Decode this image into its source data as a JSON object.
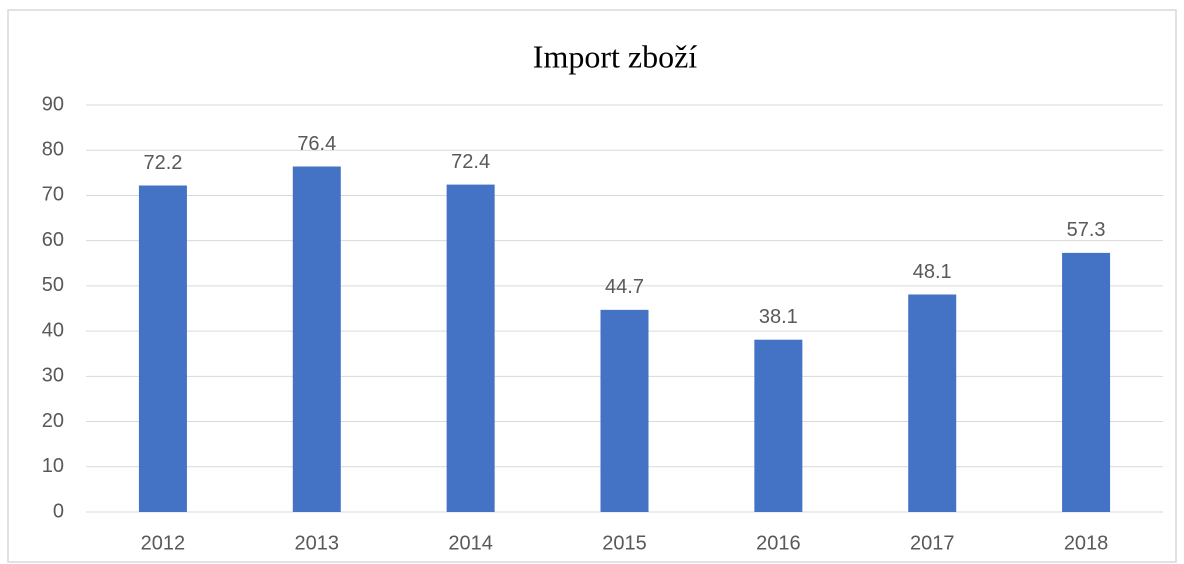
{
  "chart_data": {
    "type": "bar",
    "title": "Import zboží",
    "categories": [
      "2012",
      "2013",
      "2014",
      "2015",
      "2016",
      "2017",
      "2018"
    ],
    "values": [
      72.2,
      76.4,
      72.4,
      44.7,
      38.1,
      48.1,
      57.3
    ],
    "color": "#4472c4",
    "ylim": [
      0,
      90
    ],
    "yticks": [
      0,
      10,
      20,
      30,
      40,
      50,
      60,
      70,
      80,
      90
    ],
    "grid": true
  }
}
